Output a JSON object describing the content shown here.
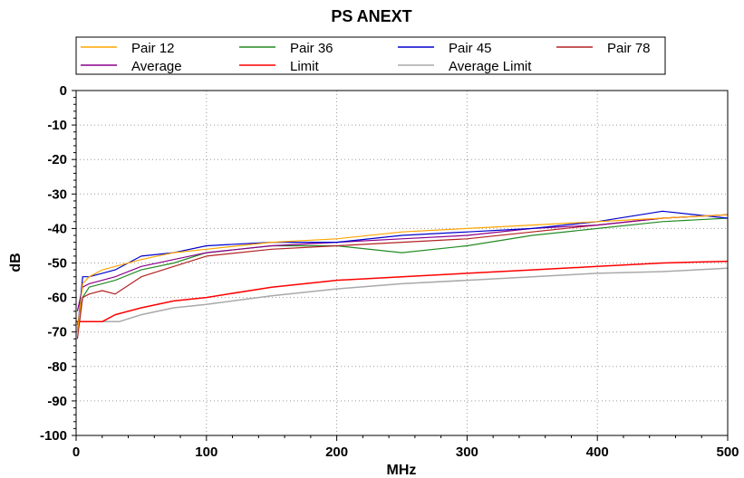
{
  "chart_data": {
    "type": "line",
    "title": "PS ANEXT",
    "xlabel": "MHz",
    "ylabel": "dB",
    "xlim": [
      0,
      500
    ],
    "ylim": [
      -100,
      0
    ],
    "x_ticks": [
      0,
      100,
      200,
      300,
      400,
      500
    ],
    "y_ticks": [
      0,
      -10,
      -20,
      -30,
      -40,
      -50,
      -60,
      -70,
      -80,
      -90,
      -100
    ],
    "grid": true,
    "legend_position": "top",
    "series": [
      {
        "name": "Pair 12",
        "color": "#FFA500",
        "x": [
          1,
          5,
          10,
          20,
          30,
          50,
          75,
          100,
          150,
          200,
          250,
          300,
          350,
          400,
          450,
          500
        ],
        "y": [
          -70,
          -56,
          -54,
          -52,
          -51,
          -49,
          -47,
          -46,
          -44,
          -43,
          -41,
          -40,
          -39,
          -38,
          -37,
          -36
        ]
      },
      {
        "name": "Pair 36",
        "color": "#228B22",
        "x": [
          1,
          5,
          10,
          20,
          30,
          50,
          75,
          100,
          150,
          200,
          250,
          300,
          350,
          400,
          450,
          500
        ],
        "y": [
          -68,
          -60,
          -57,
          -56,
          -55,
          -52,
          -50,
          -47,
          -45,
          -45,
          -47,
          -45,
          -42,
          -40,
          -38,
          -37
        ]
      },
      {
        "name": "Pair 45",
        "color": "#0000CD",
        "x": [
          1,
          5,
          10,
          20,
          30,
          50,
          75,
          100,
          150,
          200,
          250,
          300,
          350,
          400,
          450,
          500
        ],
        "y": [
          -70,
          -54,
          -54,
          -53,
          -52,
          -48,
          -47,
          -45,
          -44,
          -44,
          -42,
          -41,
          -40,
          -38,
          -35,
          -37
        ]
      },
      {
        "name": "Pair 78",
        "color": "#B22222",
        "x": [
          1,
          5,
          10,
          20,
          30,
          50,
          75,
          100,
          150,
          200,
          250,
          300,
          350,
          400,
          450,
          500
        ],
        "y": [
          -72,
          -60,
          -59,
          -58,
          -59,
          -54,
          -51,
          -48,
          -46,
          -45,
          -44,
          -43,
          -41,
          -39,
          -37,
          -36
        ]
      },
      {
        "name": "Average",
        "color": "#8B008B",
        "x": [
          1,
          5,
          10,
          20,
          30,
          50,
          75,
          100,
          150,
          200,
          250,
          300,
          350,
          400,
          450,
          500
        ],
        "y": [
          -64,
          -57,
          -56,
          -55,
          -54,
          -51,
          -49,
          -47,
          -45,
          -44,
          -43,
          -42,
          -40,
          -39,
          -37,
          -36
        ]
      },
      {
        "name": "Limit",
        "color": "#FF0000",
        "x": [
          0,
          10,
          20,
          30,
          50,
          75,
          100,
          150,
          200,
          250,
          300,
          350,
          400,
          450,
          500
        ],
        "y": [
          -67,
          -67,
          -67,
          -65,
          -63,
          -61,
          -60,
          -57,
          -55,
          -54,
          -53,
          -52,
          -51,
          -50,
          -49.5
        ]
      },
      {
        "name": "Average Limit",
        "color": "#A9A9A9",
        "x": [
          0,
          10,
          20,
          33,
          50,
          75,
          100,
          150,
          200,
          250,
          300,
          350,
          400,
          450,
          500
        ],
        "y": [
          -67,
          -67,
          -67,
          -67,
          -65,
          -63,
          -62,
          -59.5,
          -57.5,
          -56,
          -55,
          -54,
          -53,
          -52.5,
          -51.5
        ]
      }
    ]
  }
}
